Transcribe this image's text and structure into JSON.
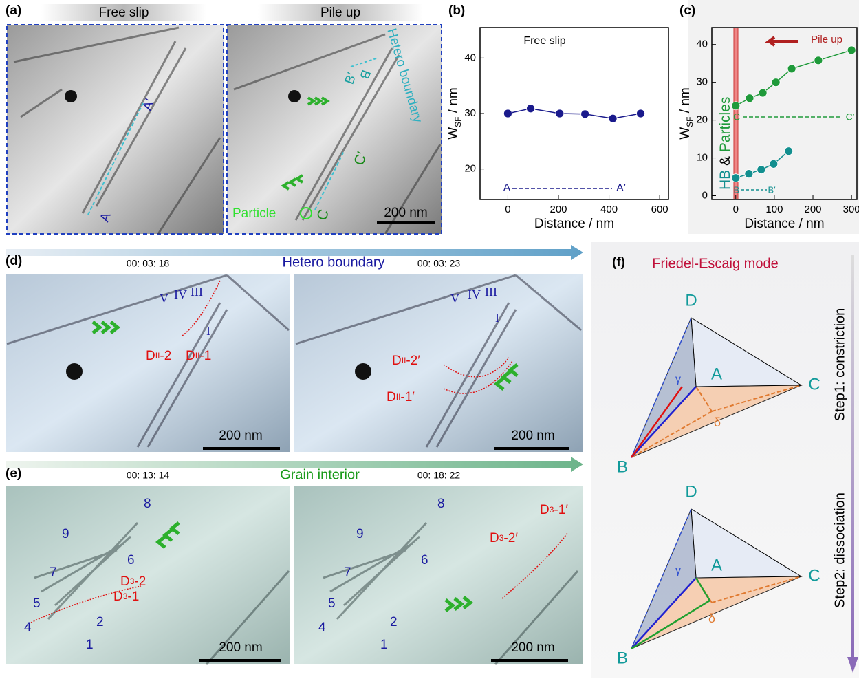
{
  "panel_a": {
    "label": "(a)",
    "left_title": "Free slip",
    "right_title": "Pile up",
    "a_prime": "A′",
    "a": "A",
    "b_prime": "B′",
    "b": "B",
    "hetero": "Hetero boundary",
    "c_prime": "C′",
    "c": "C",
    "particle": "Particle",
    "scale_bar": "200 nm"
  },
  "chart_data": [
    {
      "type": "line",
      "label": "(b)",
      "annotation": "Free slip",
      "xlabel": "Distance / nm",
      "ylabel": [
        "W",
        "SF",
        " / nm"
      ],
      "start_label": "A",
      "end_label": "A′",
      "xlim": [
        -110,
        635
      ],
      "ylim": [
        14.5,
        45.5
      ],
      "xticks": [
        0,
        200,
        400,
        600
      ],
      "yticks": [
        20,
        30,
        40
      ],
      "series": [
        {
          "color": "#1a1a8c",
          "x": [
            0,
            90,
            205,
            305,
            415,
            525
          ],
          "values": [
            30,
            30.9,
            30,
            29.9,
            29.1,
            30
          ]
        }
      ]
    },
    {
      "type": "line",
      "label": "(c)",
      "annotation": "Pile up",
      "xlabel": "Distance / nm",
      "ylabel": [
        "W",
        "SF",
        " / nm"
      ],
      "side_label": [
        "HB",
        " & ",
        "Particles"
      ],
      "c_label": "C",
      "c_prime": "C′",
      "b_label": "B",
      "b_prime": "B′",
      "xlim": [
        -62,
        314
      ],
      "ylim": [
        -1,
        44.5
      ],
      "xticks": [
        0,
        100,
        200,
        300
      ],
      "yticks": [
        0,
        10,
        20,
        30,
        40
      ],
      "series": [
        {
          "color": "#1f9a3a",
          "x": [
            0,
            36,
            70,
            104,
            145,
            214,
            300
          ],
          "values": [
            23.8,
            25.8,
            27.2,
            30,
            33.6,
            35.8,
            38.5
          ]
        },
        {
          "color": "#128f8f",
          "x": [
            0,
            34,
            66,
            98,
            137
          ],
          "values": [
            4.7,
            5.8,
            6.9,
            8.4,
            11.8
          ]
        }
      ]
    }
  ],
  "panel_d": {
    "label": "(d)",
    "title": "Hetero boundary",
    "time_left": "00: 03: 18",
    "time_right": "00: 03: 23",
    "roman_left": [
      "V",
      "IV",
      "III",
      "I"
    ],
    "roman_right": [
      "V",
      "IV",
      "III",
      "I"
    ],
    "d1": [
      "D",
      "II",
      "-1"
    ],
    "d2": [
      "D",
      "II",
      "-2"
    ],
    "d1p": [
      "D",
      "II",
      "-1′"
    ],
    "d2p": [
      "D",
      "II",
      "-2′"
    ],
    "scale_bar": "200 nm"
  },
  "panel_e": {
    "label": "(e)",
    "title": "Grain interior",
    "time_left": "00: 13: 14",
    "time_right": "00: 18: 22",
    "numbers": [
      "1",
      "2",
      "4",
      "5",
      "6",
      "7",
      "8",
      "9"
    ],
    "d1": [
      "D",
      "3",
      "-1"
    ],
    "d2": [
      "D",
      "3",
      "-2"
    ],
    "d1p": [
      "D",
      "3",
      "-1′"
    ],
    "d2p": [
      "D",
      "3",
      "-2′"
    ],
    "scale_bar": "200 nm"
  },
  "panel_f": {
    "label": "(f)",
    "title": "Friedel-Escaig mode",
    "vertex_d": "D",
    "vertex_a": "A",
    "vertex_c": "C",
    "vertex_b": "B",
    "gamma": "γ",
    "delta": "δ",
    "step1": "Step1: constriction",
    "step2": "Step2: dissociation"
  }
}
